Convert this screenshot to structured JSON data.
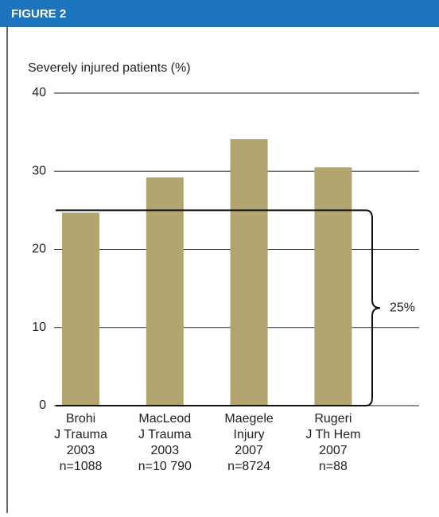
{
  "header": "FIGURE 2",
  "chart_data": {
    "type": "bar",
    "y_label": "Severely injured patients (%)",
    "categories": [
      [
        "Brohi",
        "J Trauma",
        "2003",
        "n=1088"
      ],
      [
        "MacLeod",
        "J Trauma",
        "2003",
        "n=10 790"
      ],
      [
        "Maegele",
        "Injury",
        "2007",
        "n=8724"
      ],
      [
        "Rugeri",
        "J  Th Hem",
        "2007",
        "n=88"
      ]
    ],
    "values": [
      24.7,
      29.2,
      34.1,
      30.5
    ],
    "color": "#b3a56f",
    "ylim": [
      0,
      40
    ],
    "yticks": [
      0,
      10,
      20,
      30,
      40
    ],
    "grid": true,
    "annotation": {
      "value": 25,
      "label": "25%"
    }
  }
}
